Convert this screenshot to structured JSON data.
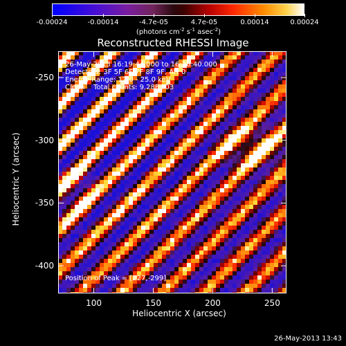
{
  "colorbar": {
    "tick_labels": [
      "-0.00024",
      "-0.00014",
      "-4.7e-05",
      "4.7e-05",
      "0.00014",
      "0.00024"
    ],
    "units_prefix": "(photons cm",
    "units_exp1": "-2",
    "units_mid": " s",
    "units_exp2": "-1",
    "units_mid2": " asec",
    "units_exp3": "-2",
    "units_suffix": ")"
  },
  "title": "Reconstructed RHESSI Image",
  "info": {
    "time_range": "26-May-2013 16:19:44.000 to 16:26:40.000",
    "detectors": "Detectors: 3F 5F 6F 7F 8F 9F, Att 0",
    "energy": "Energy Range: 12.0 - 25.0 keV",
    "clean": "Clean    Total counts: 9.28E+03"
  },
  "peak_label": "Position of Peak = [227,-299]",
  "xlabel": "Heliocentric X (arcsec)",
  "ylabel": "Heliocentric Y (arcsec)",
  "xticks": [
    "100",
    "150",
    "200",
    "250"
  ],
  "yticks": [
    "-250",
    "-300",
    "-350",
    "-400"
  ],
  "timestamp": "26-May-2013 13:43",
  "chart_data": {
    "type": "heatmap",
    "title": "Reconstructed RHESSI Image",
    "xlabel": "Heliocentric X (arcsec)",
    "ylabel": "Heliocentric Y (arcsec)",
    "xlim": [
      70,
      262
    ],
    "ylim": [
      -422,
      -229
    ],
    "color_range": [
      -0.00024,
      0.00024
    ],
    "colormap": [
      "#0000ff",
      "#7a1e9e",
      "#2a0a10",
      "#b40000",
      "#ff8c00",
      "#ffffff"
    ],
    "peak": [
      227,
      -299
    ]
  }
}
